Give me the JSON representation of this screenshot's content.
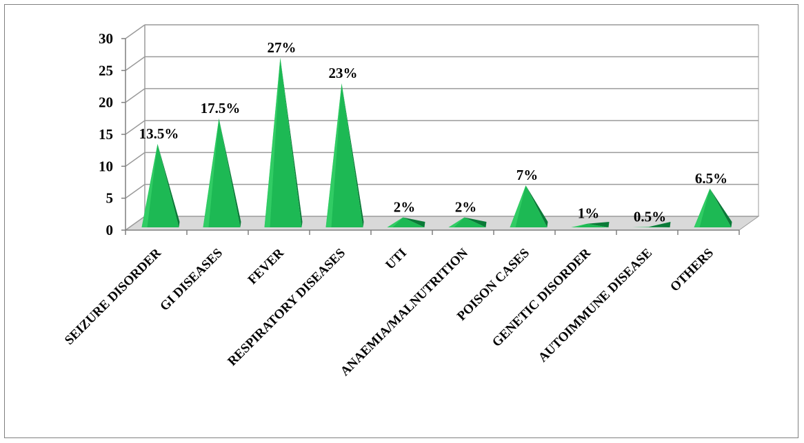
{
  "chart_data": {
    "type": "bar",
    "bar_shape": "pyramid",
    "categories": [
      "SEIZURE DISORDER",
      "GI DISEASES",
      "FEVER",
      "RESPIRATORY DISEASES",
      "UTI",
      "ANAEMIA/MALNUTRITION",
      "POISON CASES",
      "GENETIC DISORDER",
      "AUTOIMMUNE DISEASE",
      "OTHERS"
    ],
    "values": [
      13.5,
      17.5,
      27,
      23,
      2,
      2,
      7,
      1,
      0.5,
      6.5
    ],
    "data_labels": [
      "13.5%",
      "17.5%",
      "27%",
      "23%",
      "2%",
      "2%",
      "7%",
      "1%",
      "0.5%",
      "6.5%"
    ],
    "y_ticks": [
      "0",
      "5",
      "10",
      "15",
      "20",
      "25",
      "30"
    ],
    "ylim": [
      0,
      30
    ],
    "title": "",
    "xlabel": "",
    "ylabel": "",
    "grid": true,
    "legend": "none",
    "colors": {
      "face": "#1db954",
      "side": "#0b7a38",
      "light": "#3fd870",
      "grid": "#9a9a9a",
      "floor": "#d9d9d9"
    }
  }
}
